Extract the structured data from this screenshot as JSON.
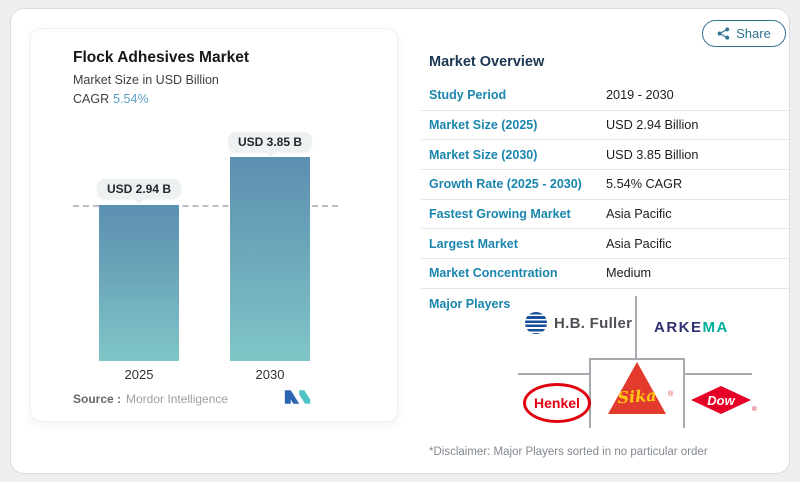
{
  "card": {
    "share_label": "Share"
  },
  "chart_panel": {
    "title": "Flock Adhesives Market",
    "subtitle": "Market Size in USD Billion",
    "cagr_label": "CAGR",
    "cagr_value": "5.54%",
    "source_label": "Source :",
    "source_value": "Mordor Intelligence"
  },
  "chart_data": {
    "type": "bar",
    "title": "Flock Adhesives Market",
    "ylabel": "Market Size in USD Billion",
    "categories": [
      "2025",
      "2030"
    ],
    "values": [
      2.94,
      3.85
    ],
    "bar_labels": [
      "USD 2.94 B",
      "USD 3.85 B"
    ],
    "unit": "USD Billion",
    "cagr_percent": 5.54,
    "ylim": [
      0,
      4.4
    ],
    "reference_line": {
      "value": 2.94,
      "style": "dashed"
    },
    "grid": false,
    "legend": false,
    "bar_gradient": [
      "#5c8fb1",
      "#7fc6c8"
    ]
  },
  "overview": {
    "heading": "Market Overview",
    "rows": [
      {
        "label": "Study Period",
        "value": "2019 - 2030"
      },
      {
        "label": "Market Size (2025)",
        "value": "USD 2.94 Billion"
      },
      {
        "label": "Market Size (2030)",
        "value": "USD 3.85 Billion"
      },
      {
        "label": "Growth Rate (2025 - 2030)",
        "value": "5.54% CAGR"
      },
      {
        "label": "Fastest Growing Market",
        "value": "Asia Pacific"
      },
      {
        "label": "Largest Market",
        "value": "Asia Pacific"
      },
      {
        "label": "Market Concentration",
        "value": "Medium"
      }
    ],
    "major_players_label": "Major Players",
    "disclaimer": "*Disclaimer: Major Players sorted in no particular order"
  },
  "logos": {
    "hb_fuller": {
      "text": "H.B. Fuller"
    },
    "arkema": {
      "prefix": "ARKE",
      "suffix": "MA"
    },
    "henkel": {
      "text": "Henkel"
    },
    "sika": {
      "text": "Sika",
      "reg": "®"
    },
    "dow": {
      "text": "Dow",
      "reg": "®"
    }
  },
  "icons": {
    "share": "share-nodes",
    "mordor": "mordor-intelligence-monogram"
  },
  "colors": {
    "accent_label": "#1a85ae",
    "heading_navy": "#1c3654",
    "cagr_value": "#5e9dc6",
    "bar_top": "#5c8fb1",
    "bar_bottom": "#7fc6c8",
    "henkel_red": "#e1000f",
    "sika_red": "#e23b2e",
    "sika_yellow": "#ffc812",
    "dow_red": "#e60028",
    "arkema_navy": "#2f3170",
    "arkema_teal": "#00af9a",
    "hb_fuller_blue": "#164f9e",
    "mordor_blue": "#2a66b0",
    "mordor_teal": "#4fc4c6"
  }
}
